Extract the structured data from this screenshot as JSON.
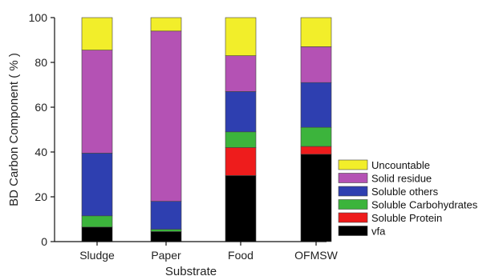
{
  "chart_data": {
    "type": "bar",
    "stacked": true,
    "categories": [
      "Sludge",
      "Paper",
      "Food",
      "OFMSW"
    ],
    "xlabel": "Substrate",
    "ylabel": "BD Carbon Component ( % )",
    "ylim": [
      0,
      100
    ],
    "yticks": [
      0,
      20,
      40,
      60,
      80,
      100
    ],
    "grid": false,
    "legend_position": "bottom-right",
    "series": [
      {
        "name": "vfa",
        "color": "#000000",
        "values": [
          6.5,
          4.5,
          29.5,
          39
        ]
      },
      {
        "name": "Soluble Protein",
        "color": "#ee1c1c",
        "values": [
          0,
          0,
          12.5,
          3.5
        ]
      },
      {
        "name": "Soluble Carbohydrates",
        "color": "#3cb43c",
        "values": [
          5,
          1,
          7,
          8.5
        ]
      },
      {
        "name": "Soluble others",
        "color": "#2e3fb0",
        "values": [
          28,
          12.5,
          18,
          20
        ]
      },
      {
        "name": "Solid residue",
        "color": "#b452b4",
        "values": [
          46,
          76,
          16,
          16
        ]
      },
      {
        "name": "Uncountable",
        "color": "#f2ee2a",
        "values": [
          14.5,
          6,
          17,
          13
        ]
      }
    ]
  }
}
